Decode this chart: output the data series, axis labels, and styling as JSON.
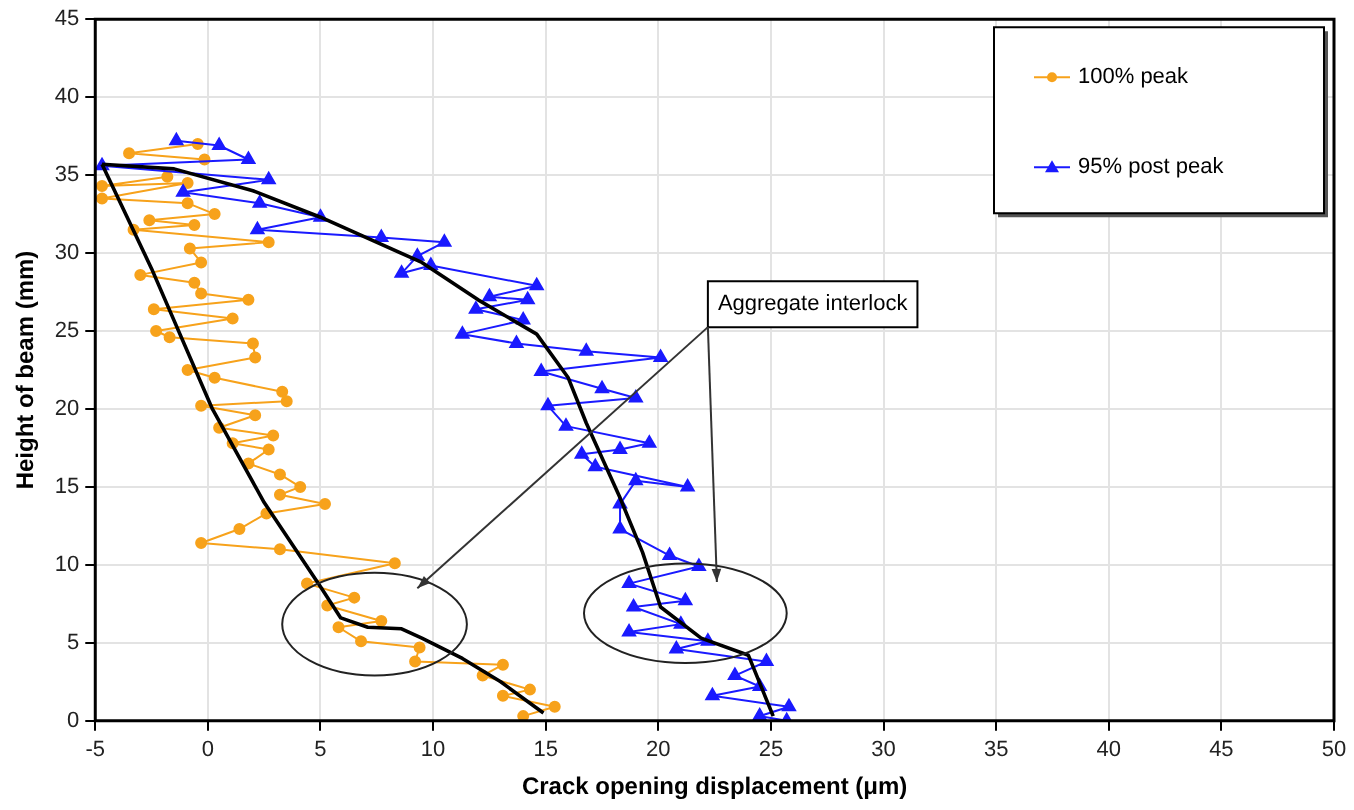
{
  "chart_data": {
    "type": "line",
    "xlabel": "Crack opening displacement (μm)",
    "ylabel": "Height of beam (mm)",
    "xlim": [
      -5,
      50
    ],
    "xticks": [
      -5,
      0,
      5,
      10,
      15,
      20,
      25,
      30,
      35,
      40,
      45,
      50
    ],
    "ylim": [
      0,
      45
    ],
    "yticks": [
      0,
      5,
      10,
      15,
      20,
      25,
      30,
      35,
      40,
      45
    ],
    "grid": true,
    "legend": "top right",
    "annotations": [
      "Aggregate interlock"
    ],
    "series": [
      {
        "name": "100% peak",
        "color": "#f7a21b",
        "marker": "circle",
        "x": [
          -0.45,
          -3.5,
          -0.15,
          null,
          -1.8,
          -4.7,
          -0.9,
          -4.7,
          -0.9,
          0.3,
          -2.6,
          -0.6,
          -3.3,
          2.7,
          -0.8,
          -0.3,
          -3.0,
          -0.6,
          -0.3,
          1.8,
          -2.4,
          1.1,
          -2.3,
          -1.7,
          2.0,
          2.1,
          -0.9,
          0.3,
          3.3,
          3.5,
          -0.3,
          2.1,
          0.5,
          2.9,
          1.1,
          2.7,
          1.8,
          3.2,
          4.1,
          3.2,
          5.2,
          2.6,
          1.4,
          -0.3,
          3.2,
          8.3,
          4.4,
          6.5,
          5.3,
          7.7,
          5.8,
          6.8,
          9.4,
          9.2,
          13.1,
          12.2,
          14.3,
          13.1,
          15.4,
          14.0
        ],
        "values": [
          37.0,
          36.4,
          36.0,
          null,
          34.9,
          34.3,
          34.5,
          33.5,
          33.2,
          32.5,
          32.1,
          31.8,
          31.5,
          30.7,
          30.3,
          29.4,
          28.6,
          28.1,
          27.4,
          27.0,
          26.4,
          25.8,
          25.0,
          24.6,
          24.2,
          23.3,
          22.5,
          22.0,
          21.1,
          20.5,
          20.2,
          19.6,
          18.8,
          18.3,
          17.8,
          17.4,
          16.5,
          15.8,
          15.0,
          14.5,
          13.9,
          13.3,
          12.3,
          11.4,
          11.0,
          10.1,
          8.8,
          7.9,
          7.4,
          6.4,
          6.0,
          5.1,
          4.7,
          3.8,
          3.6,
          2.9,
          2.0,
          1.6,
          0.9,
          0.3
        ]
      },
      {
        "name": "95% post peak",
        "color": "#1a1aff",
        "marker": "triangle",
        "x": [
          -1.4,
          0.5,
          1.8,
          -4.7,
          2.7,
          -1.1,
          2.3,
          5.0,
          2.2,
          7.7,
          10.5,
          9.3,
          8.6,
          9.9,
          14.6,
          12.5,
          14.2,
          11.9,
          14.0,
          11.3,
          13.7,
          16.8,
          20.1,
          14.8,
          17.5,
          19.0,
          15.1,
          15.9,
          19.6,
          18.3,
          16.6,
          17.2,
          21.3,
          19.0,
          18.3,
          18.3,
          20.5,
          21.8,
          18.7,
          21.2,
          18.9,
          21.0,
          18.7,
          22.2,
          20.8,
          24.8,
          23.4,
          24.5,
          22.4,
          25.8,
          24.5,
          25.7
        ],
        "values": [
          37.2,
          36.9,
          36.0,
          35.6,
          34.7,
          33.9,
          33.2,
          32.3,
          31.5,
          31.0,
          30.7,
          29.8,
          28.7,
          29.2,
          27.9,
          27.2,
          27.0,
          26.4,
          25.7,
          24.8,
          24.2,
          23.7,
          23.3,
          22.4,
          21.3,
          20.7,
          20.2,
          18.9,
          17.8,
          17.4,
          17.1,
          16.3,
          15.0,
          15.4,
          13.9,
          12.3,
          10.6,
          9.9,
          8.8,
          7.7,
          7.3,
          6.2,
          5.7,
          5.1,
          4.6,
          3.8,
          2.9,
          2.2,
          1.6,
          0.9,
          0.3,
          0.0
        ]
      },
      {
        "color": "#000000",
        "marker": "none",
        "x": [
          -4.7,
          -2.5,
          0.2,
          2.5,
          4.4,
          5.0,
          5.9,
          7.1,
          8.6,
          9.5,
          11.3,
          13.0,
          14.9
        ],
        "values": [
          35.7,
          29.0,
          20.0,
          14.0,
          9.9,
          8.6,
          6.6,
          6.0,
          5.9,
          5.3,
          4.0,
          2.5,
          0.5
        ]
      },
      {
        "color": "#000000",
        "marker": "none",
        "x": [
          -4.7,
          -1.5,
          2.0,
          5.0,
          9.5,
          12.0,
          14.6,
          16.0,
          16.8,
          18.3,
          19.3,
          20.1,
          21.9,
          24.0,
          25.1
        ],
        "values": [
          35.7,
          35.4,
          34.0,
          32.3,
          29.4,
          27.0,
          24.8,
          22.0,
          19.1,
          14.3,
          10.8,
          7.3,
          5.3,
          4.2,
          0.3
        ]
      }
    ]
  }
}
